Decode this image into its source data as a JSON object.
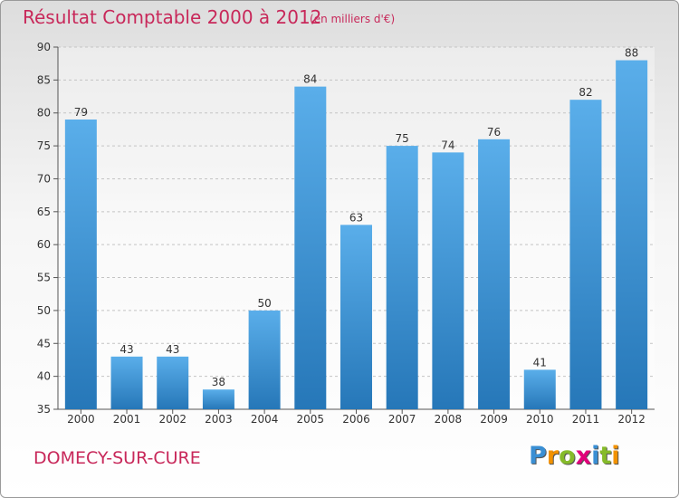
{
  "chart_data": {
    "type": "bar",
    "title": "Résultat Comptable 2000 à 2012",
    "subtitle": "(en milliers d'€)",
    "categories": [
      "2000",
      "2001",
      "2002",
      "2003",
      "2004",
      "2005",
      "2006",
      "2007",
      "2008",
      "2009",
      "2010",
      "2011",
      "2012"
    ],
    "values": [
      79,
      43,
      43,
      38,
      50,
      84,
      63,
      75,
      74,
      76,
      41,
      82,
      88
    ],
    "ylim": [
      35,
      90
    ],
    "yticks": [
      35,
      40,
      45,
      50,
      55,
      60,
      65,
      70,
      75,
      80,
      85,
      90
    ],
    "xlabel": "",
    "ylabel": "",
    "grid": true,
    "bar_color": "#3a8fd4"
  },
  "footer": {
    "commune": "DOMECY-SUR-CURE",
    "logo_letters": [
      "P",
      "r",
      "o",
      "x",
      "i",
      "t",
      "i"
    ],
    "logo_colors": [
      "#3a8fd4",
      "#f29200",
      "#86bb2a",
      "#e2007a",
      "#3a8fd4",
      "#86bb2a",
      "#f29200"
    ]
  }
}
